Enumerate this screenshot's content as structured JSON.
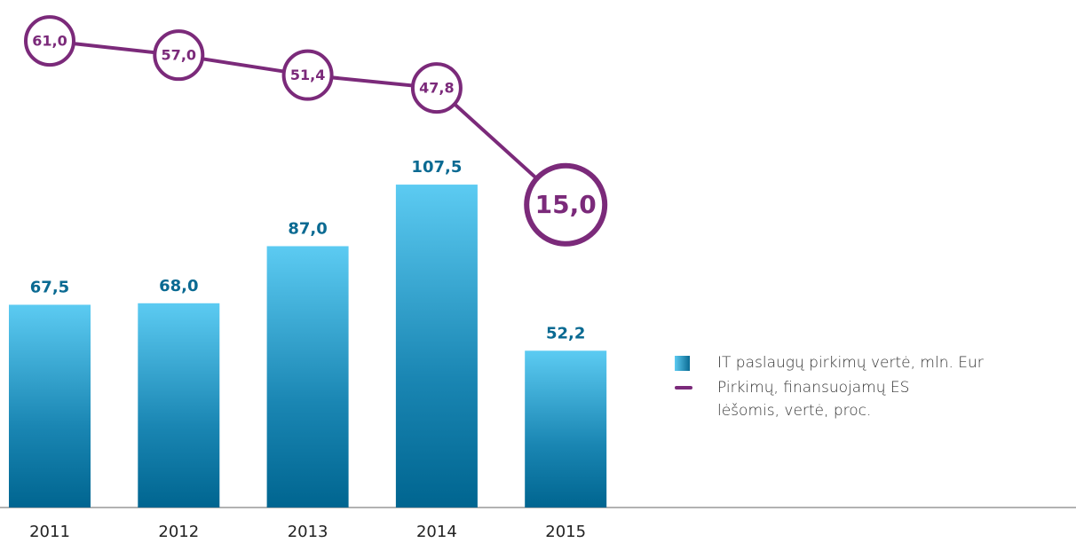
{
  "chart_data": {
    "type": "bar-line",
    "categories": [
      "2011",
      "2012",
      "2013",
      "2014",
      "2015"
    ],
    "series": [
      {
        "name": "IT paslaugų pirkimų vertė, mln. Eur",
        "type": "bar",
        "color": "#0a6a92",
        "values": [
          67.5,
          68.0,
          87.0,
          107.5,
          52.2
        ],
        "value_labels": [
          "67,5",
          "68,0",
          "87,0",
          "107,5",
          "52,2"
        ]
      },
      {
        "name": "Pirkimų, finansuojamų ES lėšomis, vertė, proc.",
        "type": "line",
        "axis": "y2",
        "color": "#7b2a7a",
        "values": [
          61.0,
          57.0,
          51.4,
          47.8,
          15.0
        ],
        "value_labels": [
          "61,0",
          "57,0",
          "51,4",
          "47,8",
          "15,0"
        ]
      }
    ],
    "ylim": [
      0,
      166
    ],
    "y2lim": [
      -70,
      70
    ],
    "legend": "right"
  }
}
